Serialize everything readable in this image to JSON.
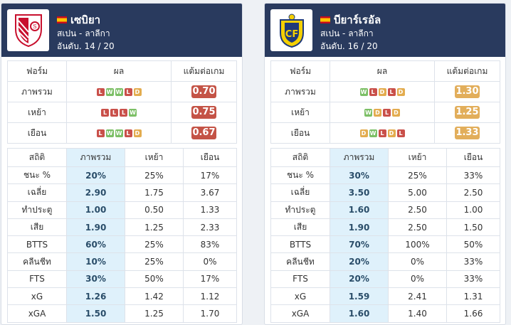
{
  "teams": [
    {
      "name": "เซบิยา",
      "league": "สเปน - ลาลีกา",
      "rank": "อันดับ. 14 / 20",
      "form_headers": [
        "ฟอร์ม",
        "ผล",
        "แต้มต่อเกม"
      ],
      "form_rows": [
        {
          "label": "ภาพรวม",
          "results": [
            "L",
            "W",
            "W",
            "L",
            "D"
          ],
          "ppg": "0.70"
        },
        {
          "label": "เหย้า",
          "results": [
            "L",
            "L",
            "L",
            "W"
          ],
          "ppg": "0.75"
        },
        {
          "label": "เยือน",
          "results": [
            "L",
            "W",
            "W",
            "L",
            "D"
          ],
          "ppg": "0.67"
        }
      ],
      "stats_headers": [
        "สถิติ",
        "ภาพรวม",
        "เหย้า",
        "เยือน"
      ],
      "stats_rows": [
        {
          "label": "ชนะ %",
          "overall": "20%",
          "home": "25%",
          "away": "17%"
        },
        {
          "label": "เฉลี่ย",
          "overall": "2.90",
          "home": "1.75",
          "away": "3.67"
        },
        {
          "label": "ทำประตู",
          "overall": "1.00",
          "home": "0.50",
          "away": "1.33"
        },
        {
          "label": "เสีย",
          "overall": "1.90",
          "home": "1.25",
          "away": "2.33"
        },
        {
          "label": "BTTS",
          "overall": "60%",
          "home": "25%",
          "away": "83%"
        },
        {
          "label": "คลีนชีท",
          "overall": "10%",
          "home": "25%",
          "away": "0%"
        },
        {
          "label": "FTS",
          "overall": "30%",
          "home": "50%",
          "away": "17%"
        },
        {
          "label": "xG",
          "overall": "1.26",
          "home": "1.42",
          "away": "1.12"
        },
        {
          "label": "xGA",
          "overall": "1.50",
          "home": "1.25",
          "away": "1.70"
        }
      ]
    },
    {
      "name": "บียาร์เรอัล",
      "league": "สเปน - ลาลีกา",
      "rank": "อันดับ. 16 / 20",
      "form_headers": [
        "ฟอร์ม",
        "ผล",
        "แต้มต่อเกม"
      ],
      "form_rows": [
        {
          "label": "ภาพรวม",
          "results": [
            "W",
            "L",
            "D",
            "L",
            "D"
          ],
          "ppg": "1.30"
        },
        {
          "label": "เหย้า",
          "results": [
            "W",
            "D",
            "L",
            "D"
          ],
          "ppg": "1.25"
        },
        {
          "label": "เยือน",
          "results": [
            "D",
            "W",
            "L",
            "D",
            "L"
          ],
          "ppg": "1.33"
        }
      ],
      "stats_headers": [
        "สถิติ",
        "ภาพรวม",
        "เหย้า",
        "เยือน"
      ],
      "stats_rows": [
        {
          "label": "ชนะ %",
          "overall": "30%",
          "home": "25%",
          "away": "33%"
        },
        {
          "label": "เฉลี่ย",
          "overall": "3.50",
          "home": "5.00",
          "away": "2.50"
        },
        {
          "label": "ทำประตู",
          "overall": "1.60",
          "home": "2.50",
          "away": "1.00"
        },
        {
          "label": "เสีย",
          "overall": "1.90",
          "home": "2.50",
          "away": "1.50"
        },
        {
          "label": "BTTS",
          "overall": "70%",
          "home": "100%",
          "away": "50%"
        },
        {
          "label": "คลีนชีท",
          "overall": "20%",
          "home": "0%",
          "away": "33%"
        },
        {
          "label": "FTS",
          "overall": "20%",
          "home": "0%",
          "away": "33%"
        },
        {
          "label": "xG",
          "overall": "1.59",
          "home": "2.41",
          "away": "1.31"
        },
        {
          "label": "xGA",
          "overall": "1.60",
          "home": "1.40",
          "away": "1.66"
        }
      ]
    }
  ],
  "colors": {
    "header_bg": "#293a5e",
    "win": "#7cbf66",
    "loss": "#c9504a",
    "draw": "#e3ac4f",
    "ppg_low": "#c45346",
    "ppg_mid": "#e2ae5b",
    "highlight": "#dff1fb"
  },
  "icons": {
    "flag": "spain-flag-icon",
    "logo_left": "sevilla-crest-icon",
    "logo_right": "villarreal-crest-icon"
  }
}
